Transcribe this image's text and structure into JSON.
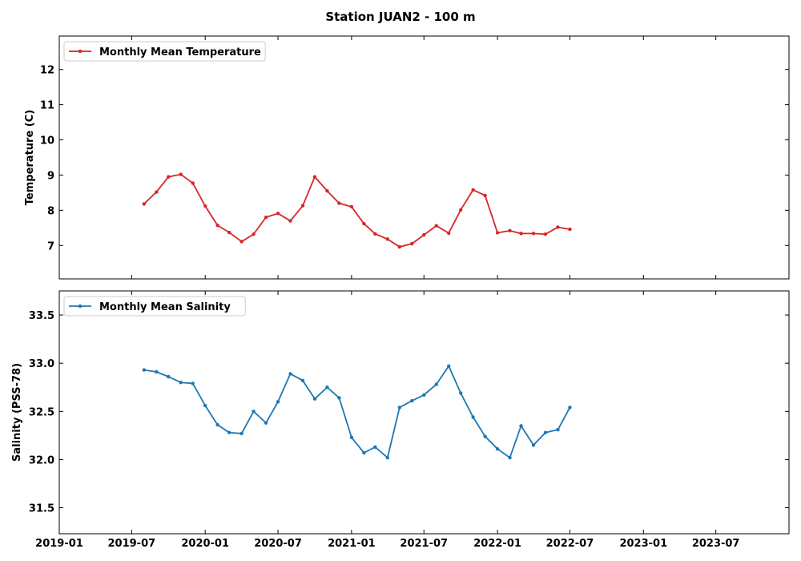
{
  "figure": {
    "title": "Station JUAN2 - 100 m"
  },
  "colors": {
    "temperature": "#d62728",
    "salinity": "#1f77b4"
  },
  "x_ticks": [
    "2019-01",
    "2019-07",
    "2020-01",
    "2020-07",
    "2021-01",
    "2021-07",
    "2022-01",
    "2022-07",
    "2023-01",
    "2023-07"
  ],
  "chart_data": [
    {
      "type": "line",
      "ylabel": "Temperature (C)",
      "xlim": [
        "2019-01-01",
        "2023-12-31"
      ],
      "ylim": [
        6.05,
        12.95
      ],
      "yticks": [
        "7",
        "8",
        "9",
        "10",
        "11",
        "12"
      ],
      "grid": false,
      "legend": "upper-left",
      "series": [
        {
          "name": "Monthly Mean Temperature",
          "x": [
            "2019-08-01",
            "2019-09-01",
            "2019-10-01",
            "2019-11-01",
            "2019-12-01",
            "2020-01-01",
            "2020-02-01",
            "2020-03-01",
            "2020-04-01",
            "2020-05-01",
            "2020-06-01",
            "2020-07-01",
            "2020-08-01",
            "2020-09-01",
            "2020-10-01",
            "2020-11-01",
            "2020-12-01",
            "2021-01-01",
            "2021-02-01",
            "2021-03-01",
            "2021-04-01",
            "2021-05-01",
            "2021-06-01",
            "2021-07-01",
            "2021-08-01",
            "2021-09-01",
            "2021-10-01",
            "2021-11-01",
            "2021-12-01",
            "2022-01-01",
            "2022-02-01",
            "2022-03-01",
            "2022-04-01",
            "2022-05-01",
            "2022-06-01",
            "2022-07-01"
          ],
          "values": [
            8.18,
            8.52,
            8.95,
            9.02,
            8.77,
            8.12,
            7.57,
            7.37,
            7.11,
            7.32,
            7.8,
            7.91,
            7.7,
            8.13,
            8.95,
            8.55,
            8.2,
            8.1,
            7.62,
            7.33,
            7.18,
            6.96,
            7.05,
            7.3,
            7.56,
            7.35,
            8.01,
            8.58,
            8.42,
            7.36,
            7.42,
            7.34,
            7.34,
            7.32,
            7.52,
            7.46
          ]
        }
      ]
    },
    {
      "type": "line",
      "ylabel": "Salinity (PSS-78)",
      "xlim": [
        "2019-01-01",
        "2023-12-31"
      ],
      "ylim": [
        31.23,
        33.75
      ],
      "yticks": [
        "31.5",
        "32.0",
        "32.5",
        "33.0",
        "33.5"
      ],
      "grid": false,
      "legend": "upper-left",
      "series": [
        {
          "name": "Monthly Mean Salinity",
          "x": [
            "2019-08-01",
            "2019-09-01",
            "2019-10-01",
            "2019-11-01",
            "2019-12-01",
            "2020-01-01",
            "2020-02-01",
            "2020-03-01",
            "2020-04-01",
            "2020-05-01",
            "2020-06-01",
            "2020-07-01",
            "2020-08-01",
            "2020-09-01",
            "2020-10-01",
            "2020-11-01",
            "2020-12-01",
            "2021-01-01",
            "2021-02-01",
            "2021-03-01",
            "2021-04-01",
            "2021-05-01",
            "2021-06-01",
            "2021-07-01",
            "2021-08-01",
            "2021-09-01",
            "2021-10-01",
            "2021-11-01",
            "2021-12-01",
            "2022-01-01",
            "2022-02-01",
            "2022-03-01",
            "2022-04-01",
            "2022-05-01",
            "2022-06-01",
            "2022-07-01"
          ],
          "values": [
            32.93,
            32.91,
            32.86,
            32.8,
            32.79,
            32.56,
            32.36,
            32.28,
            32.27,
            32.5,
            32.38,
            32.6,
            32.89,
            32.82,
            32.63,
            32.75,
            32.64,
            32.23,
            32.07,
            32.13,
            32.02,
            32.54,
            32.61,
            32.67,
            32.78,
            32.97,
            32.69,
            32.44,
            32.24,
            32.11,
            32.02,
            32.35,
            32.15,
            32.28,
            32.31,
            32.54
          ]
        }
      ]
    }
  ]
}
